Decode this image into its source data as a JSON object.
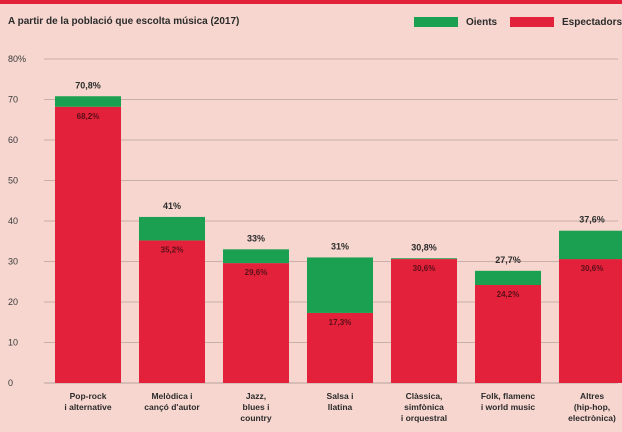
{
  "chart_data": {
    "type": "bar",
    "stacked": true,
    "subtitle": "A partir de la població que escolta música (2017)",
    "ylim": [
      0,
      80
    ],
    "yticks": [
      "0",
      "10",
      "20",
      "30",
      "40",
      "50",
      "60",
      "70",
      "80%"
    ],
    "grid": true,
    "legend_position": "top-right",
    "categories": [
      [
        "Pop-rock",
        "i alternative"
      ],
      [
        "Melòdica i",
        "cançó d'autor"
      ],
      [
        "Jazz,",
        "blues i",
        "country"
      ],
      [
        "Salsa i",
        "llatina"
      ],
      [
        "Clàssica,",
        "simfònica",
        "i orquestral"
      ],
      [
        "Folk, flamenc",
        "i world music"
      ],
      [
        "Altres",
        "(hip-hop,",
        "electrònica)"
      ]
    ],
    "series": [
      {
        "name": "Espectadors",
        "color": "#e3213a",
        "values": [
          68.2,
          35.2,
          29.6,
          17.3,
          30.6,
          24.2,
          30.6
        ],
        "labels": [
          "68,2%",
          "35,2%",
          "29,6%",
          "17,3%",
          "30,6%",
          "24,2%",
          "30,6%"
        ]
      },
      {
        "name": "Oients",
        "color": "#1aa050",
        "values": [
          2.6,
          5.8,
          3.4,
          13.7,
          0.2,
          3.5,
          7.0
        ]
      }
    ],
    "totals": [
      70.8,
      41,
      33,
      31,
      30.8,
      27.7,
      37.6
    ],
    "total_labels": [
      "70,8%",
      "41%",
      "33%",
      "31%",
      "30,8%",
      "27,7%",
      "37,6%"
    ]
  }
}
